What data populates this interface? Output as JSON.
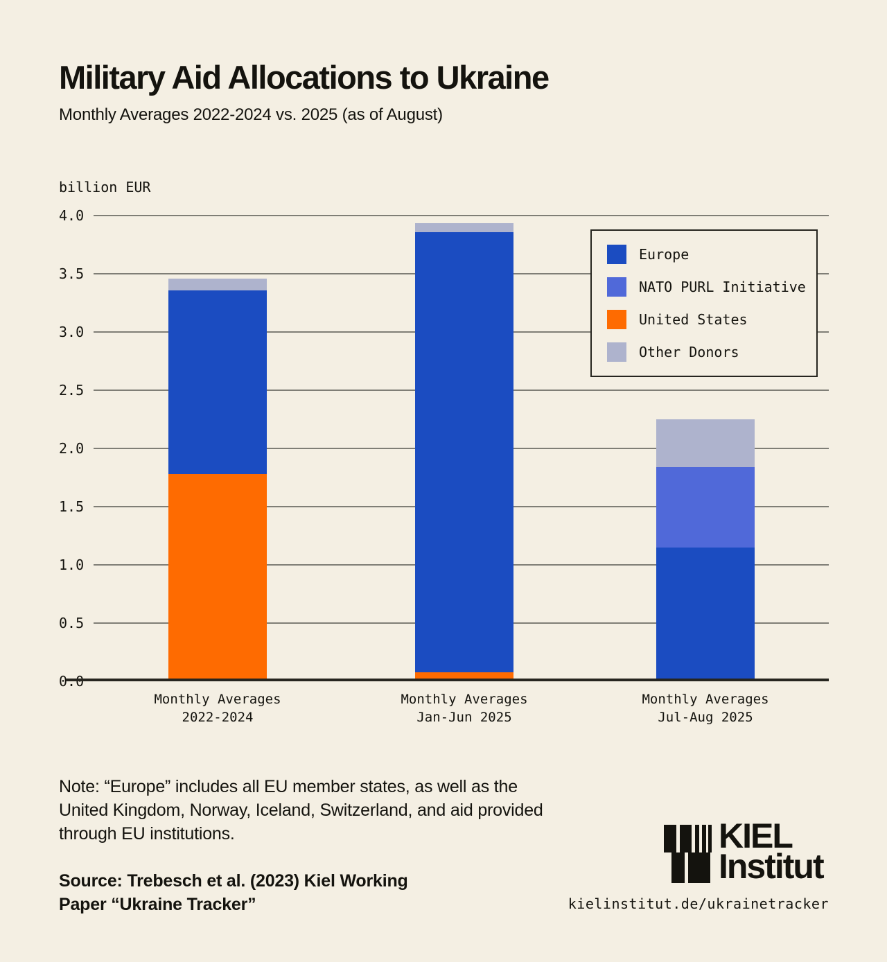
{
  "title": "Military Aid Allocations to Ukraine",
  "subtitle": "Monthly Averages 2022-2024 vs. 2025 (as of August)",
  "unit_label": "billion EUR",
  "colors": {
    "europe": "#1b4cc1",
    "nato_purl": "#5069d9",
    "united_states": "#fe6b01",
    "other_donors": "#aeb3cd",
    "background": "#f4efe3",
    "text": "#14130e",
    "gridline": "#7f7e76",
    "axis": "#26251f"
  },
  "legend": {
    "items": [
      {
        "label": "Europe",
        "color_key": "europe"
      },
      {
        "label": "NATO PURL Initiative",
        "color_key": "nato_purl"
      },
      {
        "label": "United States",
        "color_key": "united_states"
      },
      {
        "label": "Other Donors",
        "color_key": "other_donors"
      }
    ]
  },
  "chart_data": {
    "type": "bar",
    "stacked": true,
    "title": "Military Aid Allocations to Ukraine",
    "subtitle": "Monthly Averages 2022-2024 vs. 2025 (as of August)",
    "ylabel": "billion EUR",
    "ylim": [
      0,
      4.0
    ],
    "ytick_step": 0.5,
    "grid": true,
    "legend_position": "upper right",
    "yticks": [
      "0.0",
      "0.5",
      "1.0",
      "1.5",
      "2.0",
      "2.5",
      "3.0",
      "3.5",
      "4.0"
    ],
    "categories": [
      {
        "lines": [
          "Monthly Averages",
          "2022-2024"
        ]
      },
      {
        "lines": [
          "Monthly Averages",
          "Jan-Jun 2025"
        ]
      },
      {
        "lines": [
          "Monthly Averages",
          "Jul-Aug 2025"
        ]
      }
    ],
    "series": [
      {
        "name": "United States",
        "color_key": "united_states",
        "values": [
          1.78,
          0.08,
          0
        ]
      },
      {
        "name": "Europe",
        "color_key": "europe",
        "values": [
          1.58,
          3.78,
          1.15
        ]
      },
      {
        "name": "NATO PURL Initiative",
        "color_key": "nato_purl",
        "values": [
          0,
          0,
          0.69
        ]
      },
      {
        "name": "Other Donors",
        "color_key": "other_donors",
        "values": [
          0.1,
          0.08,
          0.41
        ]
      }
    ],
    "stack_totals": [
      3.46,
      3.94,
      2.25
    ]
  },
  "note": {
    "lines": [
      "Note: “Europe” includes all EU member states, as well as the",
      "United Kingdom, Norway, Iceland, Switzerland, and aid provided",
      "through EU institutions."
    ]
  },
  "source": {
    "lines": [
      "Source: Trebesch et al. (2023) Kiel Working",
      "Paper “Ukraine Tracker”"
    ]
  },
  "logo": {
    "line1": "KIEL",
    "line2": "Institut"
  },
  "website": "kielinstitut.de/ukrainetracker"
}
